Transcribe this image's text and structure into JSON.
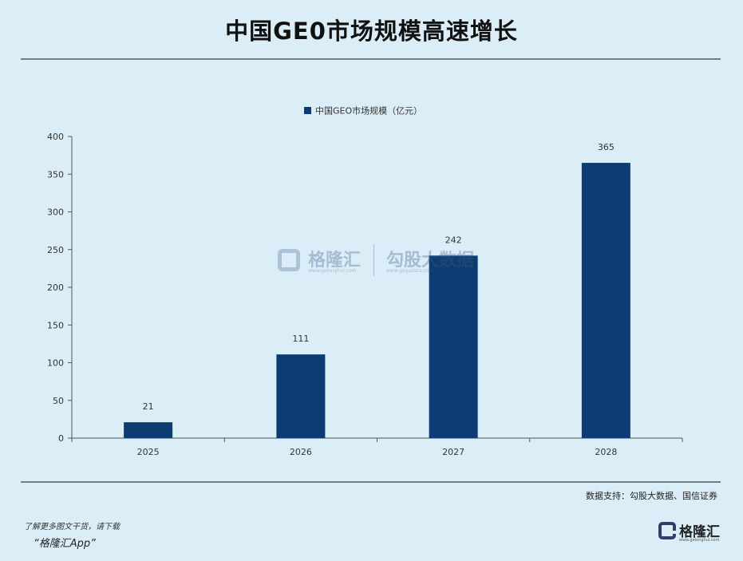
{
  "page": {
    "title": "中国GE0市场规模高速增长",
    "source": "数据支持：勾股大数据、国信证券",
    "promo_line1": "了解更多图文干货，请下载",
    "promo_line2": "“格隆汇App”"
  },
  "logo": {
    "name": "格隆汇",
    "url": "www.gelonghui.com"
  },
  "watermark": {
    "name": "格隆汇",
    "url": "www.gelonghui.com",
    "name2": "勾股大数据",
    "url2": "www.gogudata.com"
  },
  "colors": {
    "bar": "#0b3d73",
    "background": "#dbeef7",
    "axis": "#555555"
  },
  "chart_data": {
    "type": "bar",
    "categories": [
      "2025",
      "2026",
      "2027",
      "2028"
    ],
    "series": [
      {
        "name": "中国GEO市场规模（亿元）",
        "values": [
          21,
          111,
          242,
          365
        ]
      }
    ],
    "data_labels": [
      "21",
      "111",
      "242",
      "365"
    ],
    "yticks": [
      "0",
      "50",
      "100",
      "150",
      "200",
      "250",
      "300",
      "350",
      "400"
    ],
    "ylim": [
      0,
      400
    ],
    "grid": false,
    "legend_position": "top-center"
  }
}
